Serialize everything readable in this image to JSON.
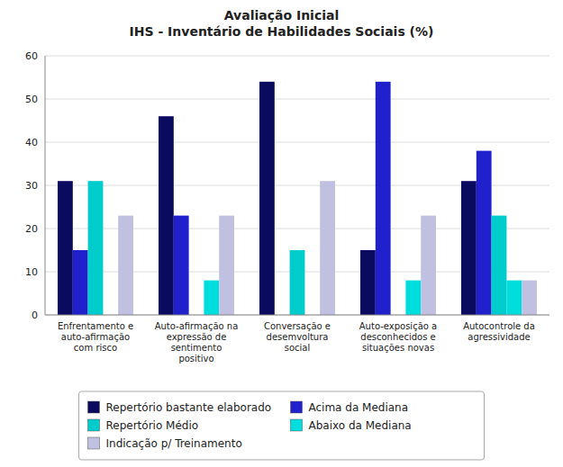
{
  "chart_data": {
    "type": "bar",
    "title": "Avaliação Inicial\nIHS - Inventário de Habilidades Sociais (%)",
    "categories": [
      "Enfrentamento e\nauto-afirmação\ncom risco",
      "Auto-afirmação na\nexpressão de\nsentimento\npositivo",
      "Conversação e\ndesemvoltura\nsocial",
      "Auto-exposição a\ndesconhecidos e\nsituações novas",
      "Autocontrole da\nagressividade"
    ],
    "series": [
      {
        "name": "Repertório bastante elaborado",
        "color": "#0a0a5e",
        "values": [
          31,
          46,
          54,
          15,
          31
        ]
      },
      {
        "name": "Acima da Mediana",
        "color": "#2020cc",
        "values": [
          15,
          23,
          0,
          54,
          38
        ]
      },
      {
        "name": "Repertório Médio",
        "color": "#00cccc",
        "values": [
          31,
          0,
          15,
          0,
          23
        ]
      },
      {
        "name": "Abaixo da Mediana",
        "color": "#00dddd",
        "values": [
          0,
          8,
          0,
          8,
          8
        ]
      },
      {
        "name": "Indicação p/ Treinamento",
        "color": "#c0c0e0",
        "values": [
          23,
          23,
          31,
          23,
          8
        ]
      }
    ],
    "ylim": [
      0,
      60
    ],
    "yticks": [
      0,
      10,
      20,
      30,
      40,
      50,
      60
    ],
    "grid": true,
    "legend": "bottom"
  }
}
